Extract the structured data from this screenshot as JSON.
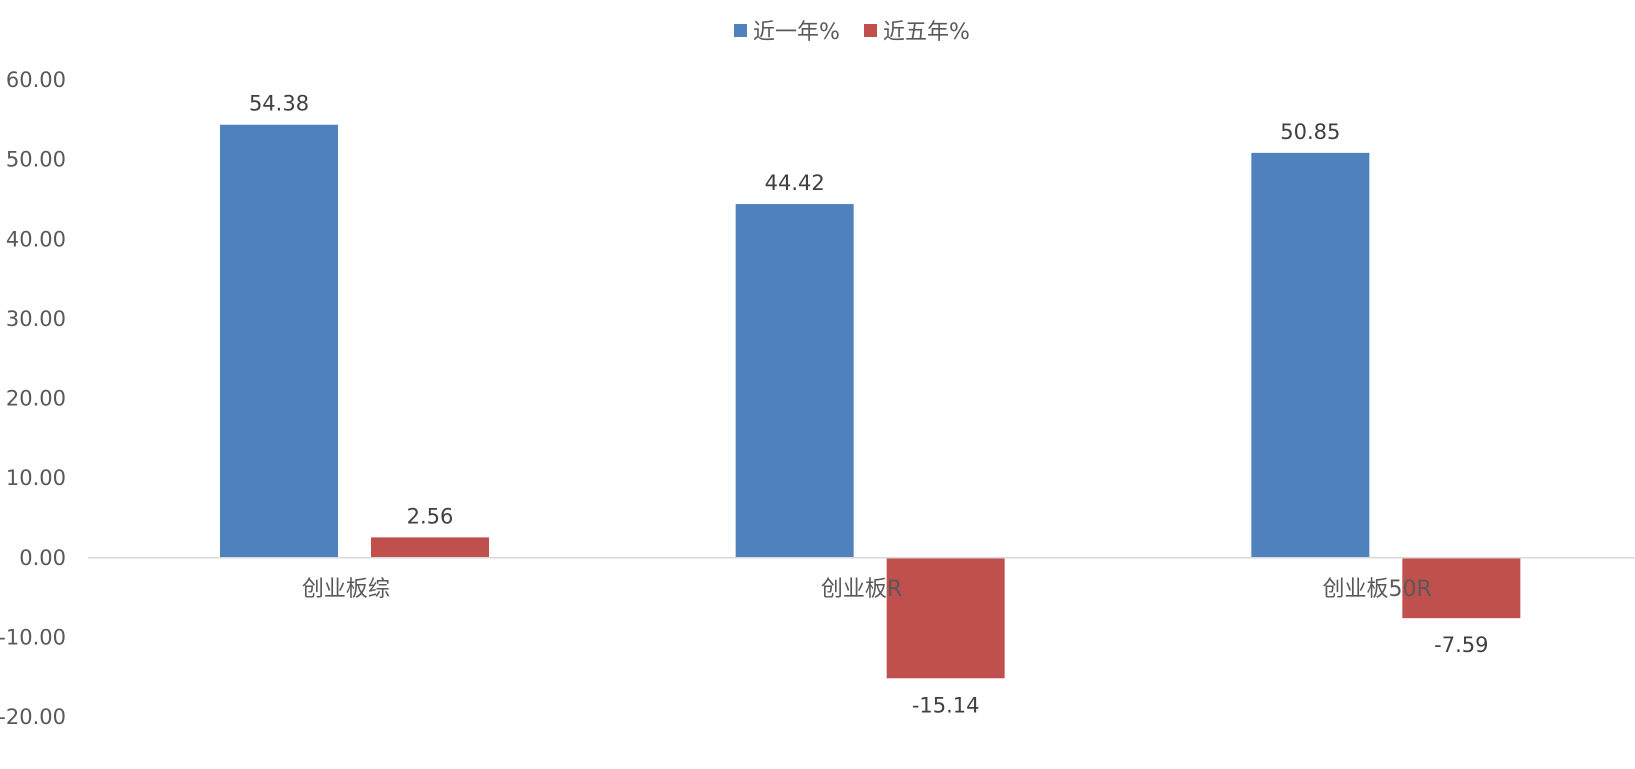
{
  "chart_data": {
    "type": "bar",
    "categories": [
      "创业板综",
      "创业板R",
      "创业板50R"
    ],
    "series": [
      {
        "name": "近一年%",
        "values": [
          54.38,
          44.42,
          50.85
        ],
        "color": "#4f81bd"
      },
      {
        "name": "近五年%",
        "values": [
          2.56,
          -15.14,
          -7.59
        ],
        "color": "#c0504d"
      }
    ],
    "data_labels": [
      [
        "54.38",
        "44.42",
        "50.85"
      ],
      [
        "2.56",
        "-15.14",
        "-7.59"
      ]
    ],
    "y_ticks": [
      "60.00",
      "50.00",
      "40.00",
      "30.00",
      "20.00",
      "10.00",
      "0.00",
      "-10.00",
      "-20.00"
    ],
    "ylim": [
      -20,
      60
    ],
    "legend_position": "top-center",
    "grid": false
  }
}
